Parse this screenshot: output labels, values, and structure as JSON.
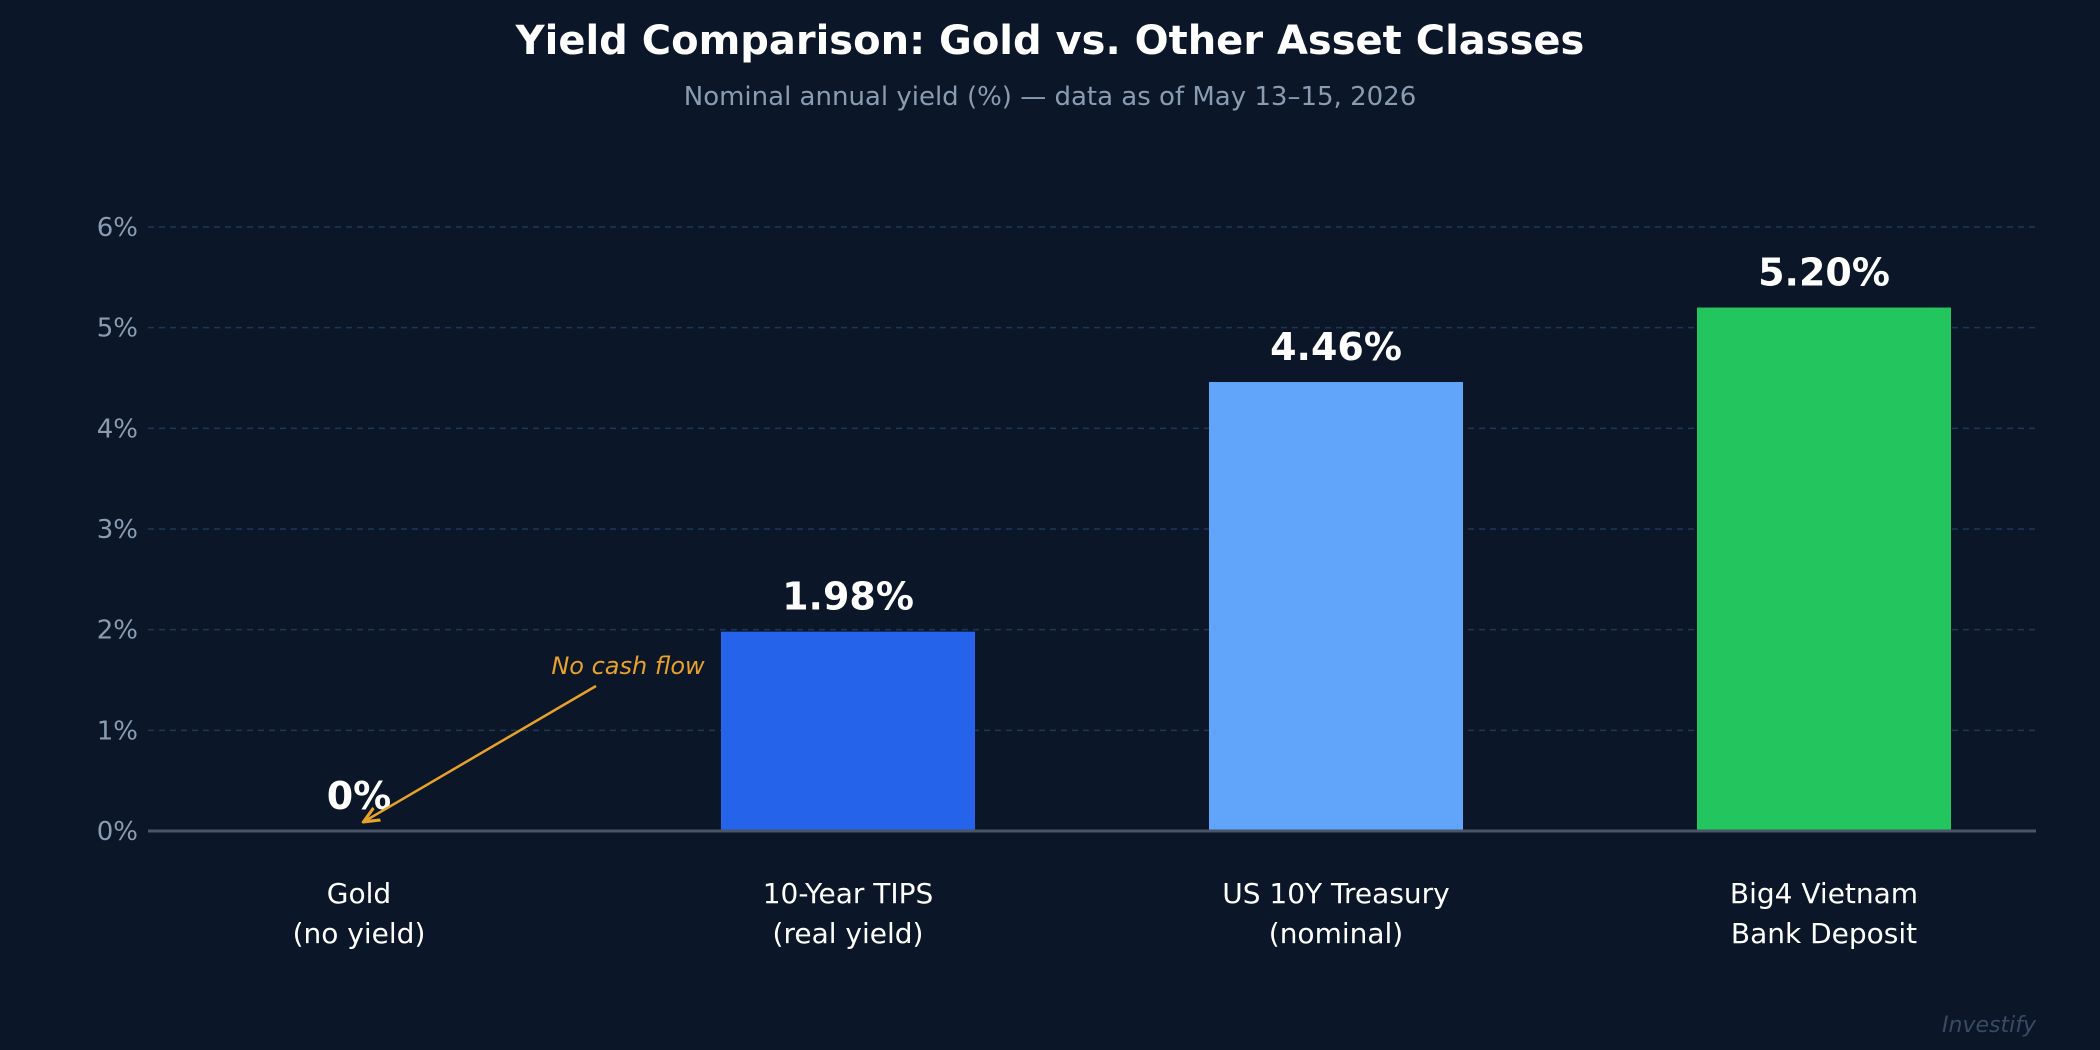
{
  "chart_data": {
    "type": "bar",
    "title": "Yield Comparison: Gold vs. Other Asset Classes",
    "subtitle": "Nominal annual yield (%) — data as of May 13–15, 2026",
    "categories": [
      [
        "Gold",
        "(no yield)"
      ],
      [
        "10-Year TIPS",
        "(real yield)"
      ],
      [
        "US 10Y Treasury",
        "(nominal)"
      ],
      [
        "Big4 Vietnam",
        "Bank Deposit"
      ]
    ],
    "values": [
      0,
      1.98,
      4.46,
      5.2
    ],
    "value_labels": [
      "0%",
      "1.98%",
      "4.46%",
      "5.20%"
    ],
    "bar_colors": [
      "#e0a030",
      "#2563eb",
      "#60a5fa",
      "#22c55e"
    ],
    "ylim": [
      0,
      6
    ],
    "yticks": [
      0,
      1,
      2,
      3,
      4,
      5,
      6
    ],
    "ytick_labels": [
      "0%",
      "1%",
      "2%",
      "3%",
      "4%",
      "5%",
      "6%"
    ],
    "grid": true,
    "xlabel": "",
    "ylabel": "",
    "annotation": {
      "text": "No cash flow",
      "color": "#e9a229",
      "points_to_category": 0,
      "points_to_value": 0
    }
  },
  "colors": {
    "background": "#0b1628",
    "grid": "#1e3658",
    "axis": "#4a5668",
    "tick_text": "#8b9bb2",
    "label_text": "#ffffff",
    "watermark": "#3a4a63"
  },
  "watermark": "Investify"
}
